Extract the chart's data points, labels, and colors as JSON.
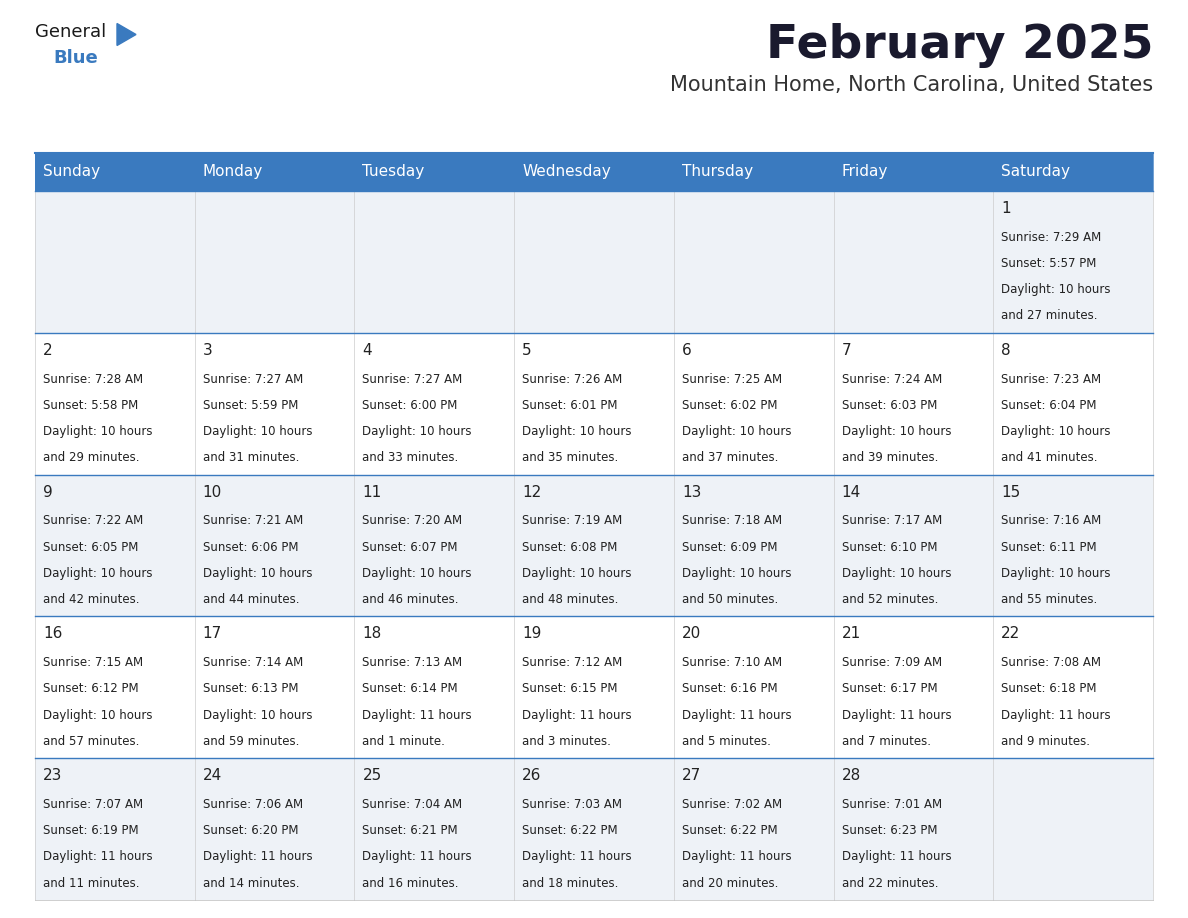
{
  "title": "February 2025",
  "subtitle": "Mountain Home, North Carolina, United States",
  "header_color": "#3a7abf",
  "header_text_color": "#ffffff",
  "cell_bg_even": "#eef2f7",
  "cell_bg_odd": "#ffffff",
  "border_color": "#3a7abf",
  "title_color": "#1a1a2e",
  "subtitle_color": "#333333",
  "text_color": "#222222",
  "day_names": [
    "Sunday",
    "Monday",
    "Tuesday",
    "Wednesday",
    "Thursday",
    "Friday",
    "Saturday"
  ],
  "days": [
    {
      "day": 1,
      "col": 6,
      "row": 0,
      "sunrise": "7:29 AM",
      "sunset": "5:57 PM",
      "daylight": "10 hours and 27 minutes."
    },
    {
      "day": 2,
      "col": 0,
      "row": 1,
      "sunrise": "7:28 AM",
      "sunset": "5:58 PM",
      "daylight": "10 hours and 29 minutes."
    },
    {
      "day": 3,
      "col": 1,
      "row": 1,
      "sunrise": "7:27 AM",
      "sunset": "5:59 PM",
      "daylight": "10 hours and 31 minutes."
    },
    {
      "day": 4,
      "col": 2,
      "row": 1,
      "sunrise": "7:27 AM",
      "sunset": "6:00 PM",
      "daylight": "10 hours and 33 minutes."
    },
    {
      "day": 5,
      "col": 3,
      "row": 1,
      "sunrise": "7:26 AM",
      "sunset": "6:01 PM",
      "daylight": "10 hours and 35 minutes."
    },
    {
      "day": 6,
      "col": 4,
      "row": 1,
      "sunrise": "7:25 AM",
      "sunset": "6:02 PM",
      "daylight": "10 hours and 37 minutes."
    },
    {
      "day": 7,
      "col": 5,
      "row": 1,
      "sunrise": "7:24 AM",
      "sunset": "6:03 PM",
      "daylight": "10 hours and 39 minutes."
    },
    {
      "day": 8,
      "col": 6,
      "row": 1,
      "sunrise": "7:23 AM",
      "sunset": "6:04 PM",
      "daylight": "10 hours and 41 minutes."
    },
    {
      "day": 9,
      "col": 0,
      "row": 2,
      "sunrise": "7:22 AM",
      "sunset": "6:05 PM",
      "daylight": "10 hours and 42 minutes."
    },
    {
      "day": 10,
      "col": 1,
      "row": 2,
      "sunrise": "7:21 AM",
      "sunset": "6:06 PM",
      "daylight": "10 hours and 44 minutes."
    },
    {
      "day": 11,
      "col": 2,
      "row": 2,
      "sunrise": "7:20 AM",
      "sunset": "6:07 PM",
      "daylight": "10 hours and 46 minutes."
    },
    {
      "day": 12,
      "col": 3,
      "row": 2,
      "sunrise": "7:19 AM",
      "sunset": "6:08 PM",
      "daylight": "10 hours and 48 minutes."
    },
    {
      "day": 13,
      "col": 4,
      "row": 2,
      "sunrise": "7:18 AM",
      "sunset": "6:09 PM",
      "daylight": "10 hours and 50 minutes."
    },
    {
      "day": 14,
      "col": 5,
      "row": 2,
      "sunrise": "7:17 AM",
      "sunset": "6:10 PM",
      "daylight": "10 hours and 52 minutes."
    },
    {
      "day": 15,
      "col": 6,
      "row": 2,
      "sunrise": "7:16 AM",
      "sunset": "6:11 PM",
      "daylight": "10 hours and 55 minutes."
    },
    {
      "day": 16,
      "col": 0,
      "row": 3,
      "sunrise": "7:15 AM",
      "sunset": "6:12 PM",
      "daylight": "10 hours and 57 minutes."
    },
    {
      "day": 17,
      "col": 1,
      "row": 3,
      "sunrise": "7:14 AM",
      "sunset": "6:13 PM",
      "daylight": "10 hours and 59 minutes."
    },
    {
      "day": 18,
      "col": 2,
      "row": 3,
      "sunrise": "7:13 AM",
      "sunset": "6:14 PM",
      "daylight": "11 hours and 1 minute."
    },
    {
      "day": 19,
      "col": 3,
      "row": 3,
      "sunrise": "7:12 AM",
      "sunset": "6:15 PM",
      "daylight": "11 hours and 3 minutes."
    },
    {
      "day": 20,
      "col": 4,
      "row": 3,
      "sunrise": "7:10 AM",
      "sunset": "6:16 PM",
      "daylight": "11 hours and 5 minutes."
    },
    {
      "day": 21,
      "col": 5,
      "row": 3,
      "sunrise": "7:09 AM",
      "sunset": "6:17 PM",
      "daylight": "11 hours and 7 minutes."
    },
    {
      "day": 22,
      "col": 6,
      "row": 3,
      "sunrise": "7:08 AM",
      "sunset": "6:18 PM",
      "daylight": "11 hours and 9 minutes."
    },
    {
      "day": 23,
      "col": 0,
      "row": 4,
      "sunrise": "7:07 AM",
      "sunset": "6:19 PM",
      "daylight": "11 hours and 11 minutes."
    },
    {
      "day": 24,
      "col": 1,
      "row": 4,
      "sunrise": "7:06 AM",
      "sunset": "6:20 PM",
      "daylight": "11 hours and 14 minutes."
    },
    {
      "day": 25,
      "col": 2,
      "row": 4,
      "sunrise": "7:04 AM",
      "sunset": "6:21 PM",
      "daylight": "11 hours and 16 minutes."
    },
    {
      "day": 26,
      "col": 3,
      "row": 4,
      "sunrise": "7:03 AM",
      "sunset": "6:22 PM",
      "daylight": "11 hours and 18 minutes."
    },
    {
      "day": 27,
      "col": 4,
      "row": 4,
      "sunrise": "7:02 AM",
      "sunset": "6:22 PM",
      "daylight": "11 hours and 20 minutes."
    },
    {
      "day": 28,
      "col": 5,
      "row": 4,
      "sunrise": "7:01 AM",
      "sunset": "6:23 PM",
      "daylight": "11 hours and 22 minutes."
    }
  ],
  "num_rows": 5,
  "small_font_size": 8.5,
  "day_num_font_size": 11,
  "header_font_size": 11,
  "title_font_size": 34,
  "subtitle_font_size": 15
}
